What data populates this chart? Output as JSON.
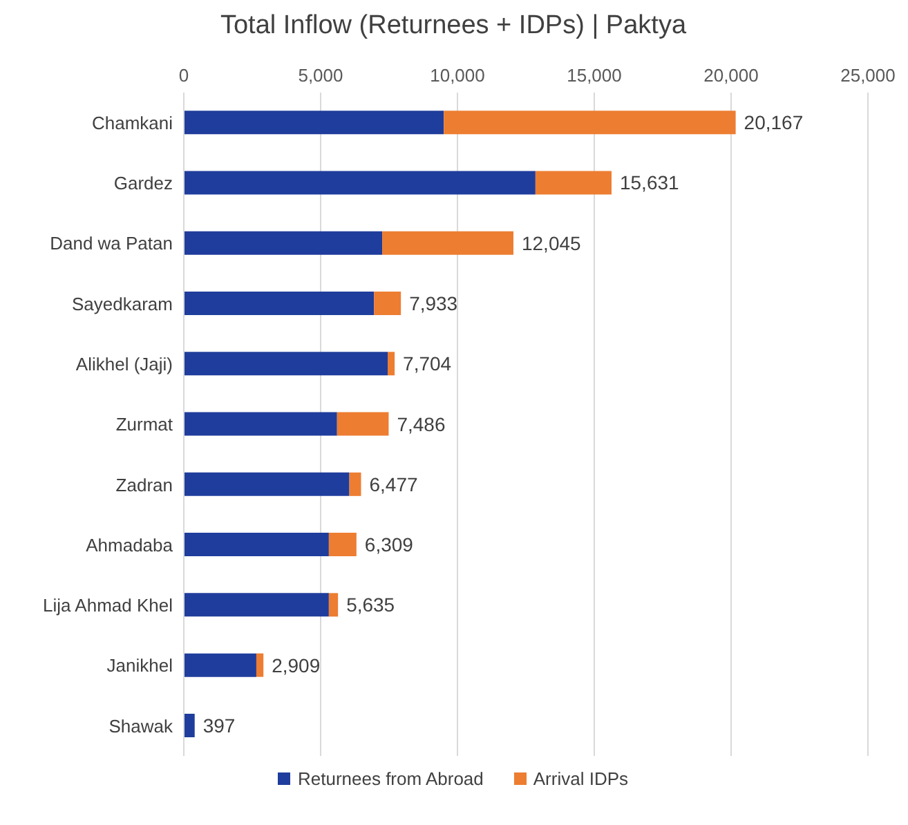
{
  "chart_data": {
    "type": "bar",
    "title": "Total Inflow (Returnees + IDPs) | Paktya",
    "orientation": "horizontal",
    "stacked": true,
    "categories": [
      "Chamkani",
      "Gardez",
      "Dand wa Patan",
      "Sayedkaram",
      "Alikhel (Jaji)",
      "Zurmat",
      "Zadran",
      "Ahmadaba",
      "Lija Ahmad Khel",
      "Janikhel",
      "Shawak"
    ],
    "series": [
      {
        "name": "Returnees from Abroad",
        "color": "#1f3d9c",
        "values": [
          9500,
          12850,
          7250,
          6950,
          7450,
          5600,
          6050,
          5300,
          5300,
          2650,
          397
        ]
      },
      {
        "name": "Arrival IDPs",
        "color": "#ed7d31",
        "values": [
          10667,
          2781,
          4795,
          983,
          254,
          1886,
          427,
          1009,
          335,
          259,
          0
        ]
      }
    ],
    "totals": [
      "20,167",
      "15,631",
      "12,045",
      "7,933",
      "7,704",
      "7,486",
      "6,477",
      "6,309",
      "5,635",
      "2,909",
      "397"
    ],
    "xlim": [
      0,
      25000
    ],
    "xticks": [
      0,
      {
        "value": 5000,
        "label": "5,000"
      },
      {
        "value": 10000,
        "label": "10,000"
      },
      {
        "value": 15000,
        "label": "15,000"
      },
      {
        "value": 20000,
        "label": "20,000"
      },
      {
        "value": 25000,
        "label": "25,000"
      }
    ],
    "grid": "x",
    "legend": "bottom"
  }
}
